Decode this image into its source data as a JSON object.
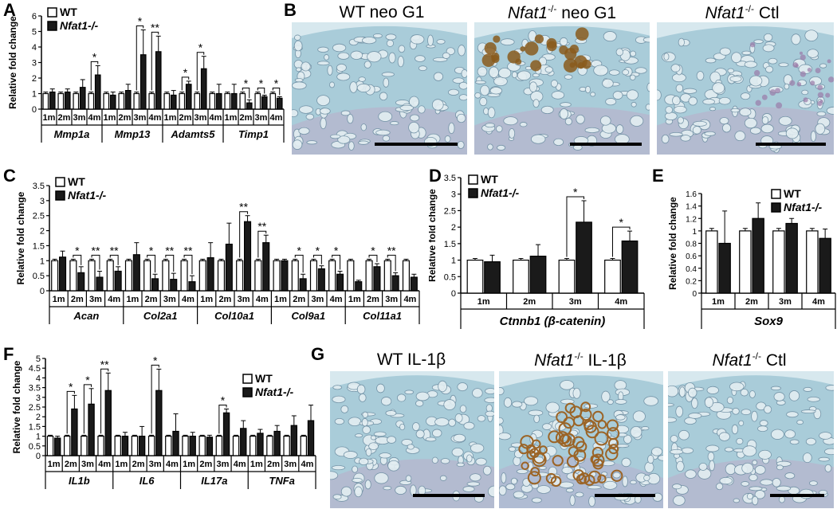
{
  "panels": {
    "A": {
      "label": "A"
    },
    "B": {
      "label": "B",
      "images": [
        {
          "title": "WT neo G1",
          "genotype": "",
          "suffix": ""
        },
        {
          "title": "",
          "genotype": "Nfat1",
          "sup": "-/-",
          "suffix": " neo G1"
        },
        {
          "title": "",
          "genotype": "Nfat1",
          "sup": "-/-",
          "suffix": " Ctl"
        }
      ]
    },
    "C": {
      "label": "C"
    },
    "D": {
      "label": "D"
    },
    "E": {
      "label": "E"
    },
    "F": {
      "label": "F"
    },
    "G": {
      "label": "G",
      "images": [
        {
          "title": "WT IL-1β",
          "genotype": "",
          "suffix": ""
        },
        {
          "title": "",
          "genotype": "Nfat1",
          "sup": "-/-",
          "suffix": " IL-1β"
        },
        {
          "title": "",
          "genotype": "Nfat1",
          "sup": "-/-",
          "suffix": " Ctl"
        }
      ]
    }
  },
  "colors": {
    "wt": "#ffffff",
    "ko": "#1a1a1a",
    "stain_blue": "#9fc3d2",
    "brown": "#8a5a1c"
  },
  "chart_data": [
    {
      "id": "A",
      "type": "bar",
      "ylabel": "Relative fold change",
      "ylim": [
        0,
        6
      ],
      "yticks": [
        0,
        1,
        2,
        3,
        4,
        5,
        6
      ],
      "legend": [
        "WT",
        "Nfat1-/-"
      ],
      "legend_position": "top-left",
      "timepoints": [
        "1m",
        "2m",
        "3m",
        "4m"
      ],
      "genes": [
        "Mmp1a",
        "Mmp13",
        "Adamts5",
        "Timp1"
      ],
      "series": [
        {
          "name": "WT",
          "values": [
            [
              1,
              1,
              1,
              1
            ],
            [
              1,
              1,
              1,
              1
            ],
            [
              1,
              1,
              1,
              1
            ],
            [
              1,
              1,
              1,
              1
            ]
          ],
          "errors": [
            [
              0.1,
              0.1,
              0.1,
              0.1
            ],
            [
              0.1,
              0.1,
              0.1,
              0.1
            ],
            [
              0.1,
              0.1,
              0.1,
              0.1
            ],
            [
              0.1,
              0.1,
              0.1,
              0.1
            ]
          ]
        },
        {
          "name": "Nfat1-/-",
          "values": [
            [
              1.1,
              1.1,
              1.4,
              2.2
            ],
            [
              0.9,
              1.2,
              3.5,
              3.7
            ],
            [
              0.9,
              1.6,
              2.6,
              1.0
            ],
            [
              1.0,
              0.4,
              0.8,
              0.7
            ]
          ],
          "errors": [
            [
              0.2,
              0.2,
              0.5,
              0.6
            ],
            [
              0.2,
              0.4,
              1.6,
              1.0
            ],
            [
              0.3,
              0.2,
              0.8,
              0.6
            ],
            [
              0.6,
              0.2,
              0.1,
              0.1
            ]
          ]
        }
      ],
      "sig": [
        [
          null,
          null,
          null,
          "*"
        ],
        [
          null,
          null,
          "*",
          "**"
        ],
        [
          null,
          "*",
          "*",
          null
        ],
        [
          null,
          "*",
          "*",
          "*"
        ]
      ]
    },
    {
      "id": "C",
      "type": "bar",
      "ylabel": "Relative fold change",
      "ylim": [
        0,
        3.5
      ],
      "yticks": [
        0,
        0.5,
        1,
        1.5,
        2,
        2.5,
        3,
        3.5
      ],
      "legend": [
        "WT",
        "Nfat1-/-"
      ],
      "legend_position": "top-left",
      "timepoints": [
        "1m",
        "2m",
        "3m",
        "4m"
      ],
      "genes": [
        "Acan",
        "Col2a1",
        "Col10a1",
        "Col9a1",
        "Col11a1"
      ],
      "series": [
        {
          "name": "WT",
          "values": [
            [
              1,
              1,
              1,
              1
            ],
            [
              1,
              1,
              1,
              1
            ],
            [
              1,
              1,
              1,
              1
            ],
            [
              1,
              1,
              1,
              1
            ],
            [
              1,
              1,
              1,
              1
            ]
          ],
          "errors": [
            [
              0.05,
              0.05,
              0.05,
              0.05
            ],
            [
              0.05,
              0.05,
              0.05,
              0.05
            ],
            [
              0.05,
              0.05,
              0.05,
              0.05
            ],
            [
              0.05,
              0.05,
              0.05,
              0.05
            ],
            [
              0.05,
              0.05,
              0.05,
              0.05
            ]
          ]
        },
        {
          "name": "Nfat1-/-",
          "values": [
            [
              1.12,
              0.6,
              0.45,
              0.65
            ],
            [
              1.2,
              0.4,
              0.38,
              0.3
            ],
            [
              1.1,
              1.55,
              2.3,
              1.6
            ],
            [
              1.0,
              0.4,
              0.73,
              0.55
            ],
            [
              0.3,
              0.8,
              0.5,
              0.45
            ]
          ],
          "errors": [
            [
              0.2,
              0.2,
              0.2,
              0.15
            ],
            [
              0.4,
              0.15,
              0.2,
              0.2
            ],
            [
              0.5,
              0.7,
              0.2,
              0.25
            ],
            [
              0.05,
              0.15,
              0.1,
              0.1
            ],
            [
              0.05,
              0.1,
              0.1,
              0.1
            ]
          ]
        }
      ],
      "sig": [
        [
          null,
          "*",
          "**",
          "**"
        ],
        [
          null,
          "*",
          "**",
          "**"
        ],
        [
          null,
          null,
          "**",
          "**"
        ],
        [
          null,
          "*",
          "*",
          "*"
        ],
        [
          null,
          "*",
          "**",
          null
        ]
      ]
    },
    {
      "id": "D",
      "type": "bar",
      "title": "Ctnnb1 (β-catenin)",
      "ylabel": "Relative fold change",
      "ylim": [
        0,
        3.5
      ],
      "yticks": [
        0,
        0.5,
        1,
        1.5,
        2,
        2.5,
        3,
        3.5
      ],
      "legend": [
        "WT",
        "Nfat1-/-"
      ],
      "legend_position": "top-left",
      "categories": [
        "1m",
        "2m",
        "3m",
        "4m"
      ],
      "series": [
        {
          "name": "WT",
          "values": [
            1,
            1,
            1,
            1
          ],
          "errors": [
            0.05,
            0.05,
            0.05,
            0.05
          ]
        },
        {
          "name": "Nfat1-/-",
          "values": [
            0.95,
            1.12,
            2.15,
            1.58
          ],
          "errors": [
            0.2,
            0.35,
            0.65,
            0.3
          ]
        }
      ],
      "sig": [
        null,
        null,
        "*",
        "*"
      ]
    },
    {
      "id": "E",
      "type": "bar",
      "title": "Sox9",
      "ylabel": "Relative fold change",
      "ylim": [
        0,
        1.6
      ],
      "yticks": [
        0,
        0.2,
        0.4,
        0.6,
        0.8,
        1,
        1.2,
        1.4,
        1.6
      ],
      "legend": [
        "WT",
        "Nfat1-/-"
      ],
      "legend_position": "top-right",
      "categories": [
        "1m",
        "2m",
        "3m",
        "4m"
      ],
      "series": [
        {
          "name": "WT",
          "values": [
            1,
            1,
            1,
            1
          ],
          "errors": [
            0.04,
            0.04,
            0.04,
            0.04
          ]
        },
        {
          "name": "Nfat1-/-",
          "values": [
            0.8,
            1.2,
            1.12,
            0.88
          ],
          "errors": [
            0.52,
            0.25,
            0.08,
            0.15
          ]
        }
      ],
      "sig": [
        null,
        null,
        null,
        null
      ]
    },
    {
      "id": "F",
      "type": "bar",
      "ylabel": "Relative fold change",
      "ylim": [
        0,
        5
      ],
      "yticks": [
        0,
        0.5,
        1,
        1.5,
        2,
        2.5,
        3,
        3.5,
        4,
        4.5,
        5
      ],
      "legend": [
        "WT",
        "Nfat1-/-"
      ],
      "legend_position": "top-right",
      "timepoints": [
        "1m",
        "2m",
        "3m",
        "4m"
      ],
      "genes": [
        "IL1b",
        "IL6",
        "IL17a",
        "TNFa"
      ],
      "series": [
        {
          "name": "WT",
          "values": [
            [
              1,
              1,
              1,
              1
            ],
            [
              1,
              1,
              1,
              1
            ],
            [
              1,
              1,
              1,
              1
            ],
            [
              1,
              1,
              1,
              1
            ]
          ],
          "errors": [
            [
              0.05,
              0.05,
              0.05,
              0.05
            ],
            [
              0.05,
              0.05,
              0.05,
              0.05
            ],
            [
              0.05,
              0.05,
              0.05,
              0.05
            ],
            [
              0.05,
              0.05,
              0.05,
              0.05
            ]
          ]
        },
        {
          "name": "Nfat1-/-",
          "values": [
            [
              0.9,
              2.4,
              2.65,
              3.35
            ],
            [
              1.0,
              1.0,
              3.35,
              1.25
            ],
            [
              1.0,
              0.95,
              2.2,
              1.4
            ],
            [
              1.15,
              1.25,
              1.55,
              1.8
            ]
          ],
          "errors": [
            [
              0.1,
              0.7,
              0.8,
              0.9
            ],
            [
              0.2,
              0.5,
              1.1,
              0.9
            ],
            [
              0.2,
              0.1,
              0.2,
              0.4
            ],
            [
              0.2,
              0.3,
              0.5,
              0.8
            ]
          ]
        }
      ],
      "sig": [
        [
          null,
          "*",
          "*",
          "**"
        ],
        [
          null,
          null,
          "*",
          null
        ],
        [
          null,
          null,
          "*",
          null
        ],
        [
          null,
          null,
          null,
          null
        ]
      ]
    }
  ]
}
